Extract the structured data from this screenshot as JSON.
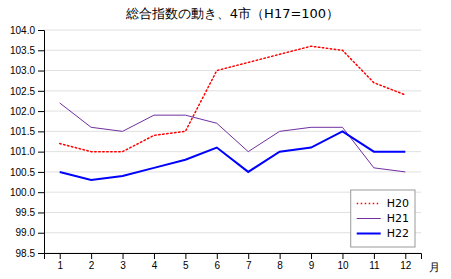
{
  "chart_data": {
    "type": "line",
    "title": "総合指数の動き、4市（H17=100）",
    "xlabel": "月",
    "x": [
      1,
      2,
      3,
      4,
      5,
      6,
      7,
      8,
      9,
      10,
      11,
      12
    ],
    "xlim": [
      0.5,
      12.5
    ],
    "xticks": [
      1,
      2,
      3,
      4,
      5,
      6,
      7,
      8,
      9,
      10,
      11,
      12
    ],
    "ylim": [
      98.5,
      104.0
    ],
    "yticks": [
      98.5,
      {
        "value": 99.0,
        "label": "99.0"
      },
      99.5,
      {
        "value": 100.0,
        "label": "100.0"
      },
      100.5,
      {
        "value": 101.0,
        "label": "101.0"
      },
      101.5,
      {
        "value": 102.0,
        "label": "102.0"
      },
      102.5,
      {
        "value": 103.0,
        "label": "103.0"
      },
      103.5,
      {
        "value": 104.0,
        "label": "104.0"
      }
    ],
    "grid": "y",
    "legend": "lower right",
    "series": [
      {
        "name": "H20",
        "color": "#ff0000",
        "line_style": "dotted",
        "values": [
          101.2,
          101.0,
          101.0,
          101.4,
          101.5,
          103.0,
          103.2,
          103.4,
          103.6,
          103.5,
          102.7,
          102.4
        ]
      },
      {
        "name": "H21",
        "color": "#7030a0",
        "line_style": "solid",
        "values": [
          102.2,
          101.6,
          101.5,
          101.9,
          101.9,
          101.7,
          101.0,
          101.5,
          101.6,
          101.6,
          100.6,
          100.5
        ]
      },
      {
        "name": "H22",
        "color": "#0000ff",
        "line_style": "solid",
        "values": [
          100.5,
          100.3,
          100.4,
          100.6,
          100.8,
          101.1,
          100.5,
          101.0,
          101.1,
          101.5,
          101.0,
          101.0
        ]
      }
    ]
  }
}
